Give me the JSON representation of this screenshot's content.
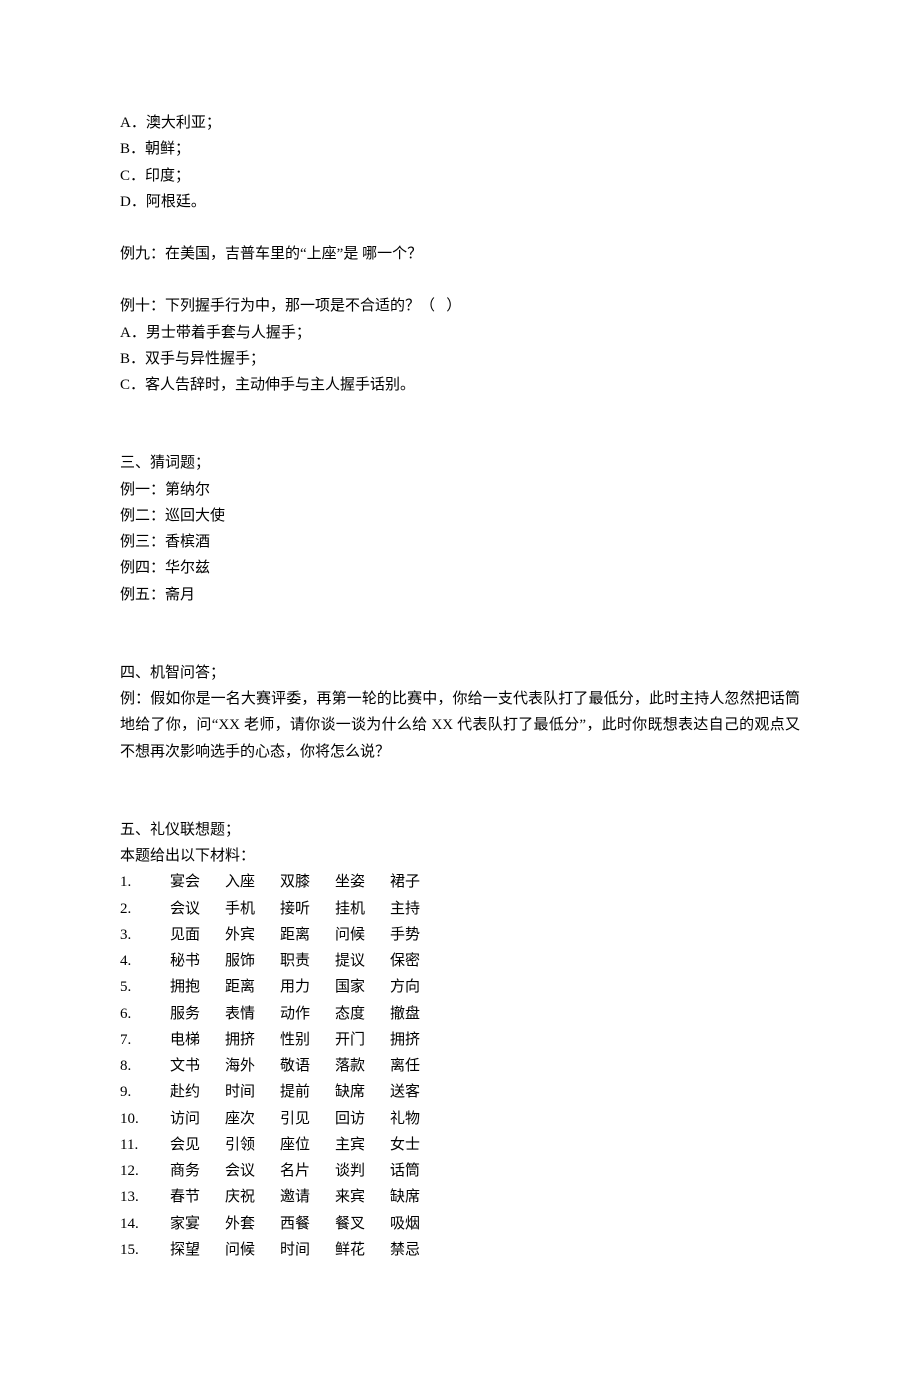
{
  "options": [
    {
      "letter": "A",
      "text": "澳大利亚；"
    },
    {
      "letter": "B",
      "text": "朝鲜；"
    },
    {
      "letter": "C",
      "text": "印度；"
    },
    {
      "letter": "D",
      "text": "阿根廷。"
    }
  ],
  "q9": "例九：在美国，吉普车里的“上座”是 哪一个？",
  "q10": {
    "stem": "例十：下列握手行为中，那一项是不合适的？（   ）",
    "opts": [
      {
        "letter": "A",
        "text": "男士带着手套与人握手；"
      },
      {
        "letter": "B",
        "text": "双手与异性握手；"
      },
      {
        "letter": "C",
        "text": "客人告辞时，主动伸手与主人握手话别。"
      }
    ]
  },
  "section3": {
    "title": "三、猜词题；",
    "items": [
      "例一：第纳尔",
      "例二：巡回大使",
      "例三：香槟酒",
      "例四：华尔兹",
      "例五：斋月"
    ]
  },
  "section4": {
    "title": "四、机智问答；",
    "body": "例：假如你是一名大赛评委，再第一轮的比赛中，你给一支代表队打了最低分，此时主持人忽然把话筒地给了你，问“XX 老师，请你谈一谈为什么给 XX 代表队打了最低分”，此时你既想表达自己的观点又不想再次影响选手的心态，你将怎么说？"
  },
  "section5": {
    "title": "五、礼仪联想题；",
    "subtitle": "本题给出以下材料：",
    "rows": [
      {
        "n": "1.",
        "w": [
          "宴会",
          "入座",
          "双膝",
          "坐姿",
          "裙子"
        ]
      },
      {
        "n": "2.",
        "w": [
          "会议",
          "手机",
          "接听",
          "挂机",
          "主持"
        ]
      },
      {
        "n": "3.",
        "w": [
          "见面",
          "外宾",
          "距离",
          "问候",
          "手势"
        ]
      },
      {
        "n": "4.",
        "w": [
          "秘书",
          "服饰",
          "职责",
          "提议",
          "保密"
        ]
      },
      {
        "n": "5.",
        "w": [
          "拥抱",
          "距离",
          "用力",
          "国家",
          "方向"
        ]
      },
      {
        "n": "6.",
        "w": [
          "服务",
          "表情",
          "动作",
          "态度",
          "撤盘"
        ]
      },
      {
        "n": "7.",
        "w": [
          "电梯",
          "拥挤",
          "性别",
          "开门",
          "拥挤"
        ]
      },
      {
        "n": "8.",
        "w": [
          "文书",
          "海外",
          "敬语",
          "落款",
          "离任"
        ]
      },
      {
        "n": "9.",
        "w": [
          "赴约",
          "时间",
          "提前",
          "缺席",
          "送客"
        ]
      },
      {
        "n": "10.",
        "w": [
          "访问",
          "座次",
          "引见",
          "回访",
          "礼物"
        ]
      },
      {
        "n": "11.",
        "w": [
          "会见",
          "引领",
          "座位",
          "主宾",
          "女士"
        ]
      },
      {
        "n": "12.",
        "w": [
          "商务",
          "会议",
          "名片",
          "谈判",
          "话筒"
        ]
      },
      {
        "n": "13.",
        "w": [
          "春节",
          "庆祝",
          "邀请",
          "来宾",
          "缺席"
        ]
      },
      {
        "n": "14.",
        "w": [
          "家宴",
          "外套",
          "西餐",
          "餐叉",
          "吸烟"
        ]
      },
      {
        "n": "15.",
        "w": [
          "探望",
          "问候",
          "时间",
          "鲜花",
          "禁忌"
        ]
      }
    ]
  }
}
